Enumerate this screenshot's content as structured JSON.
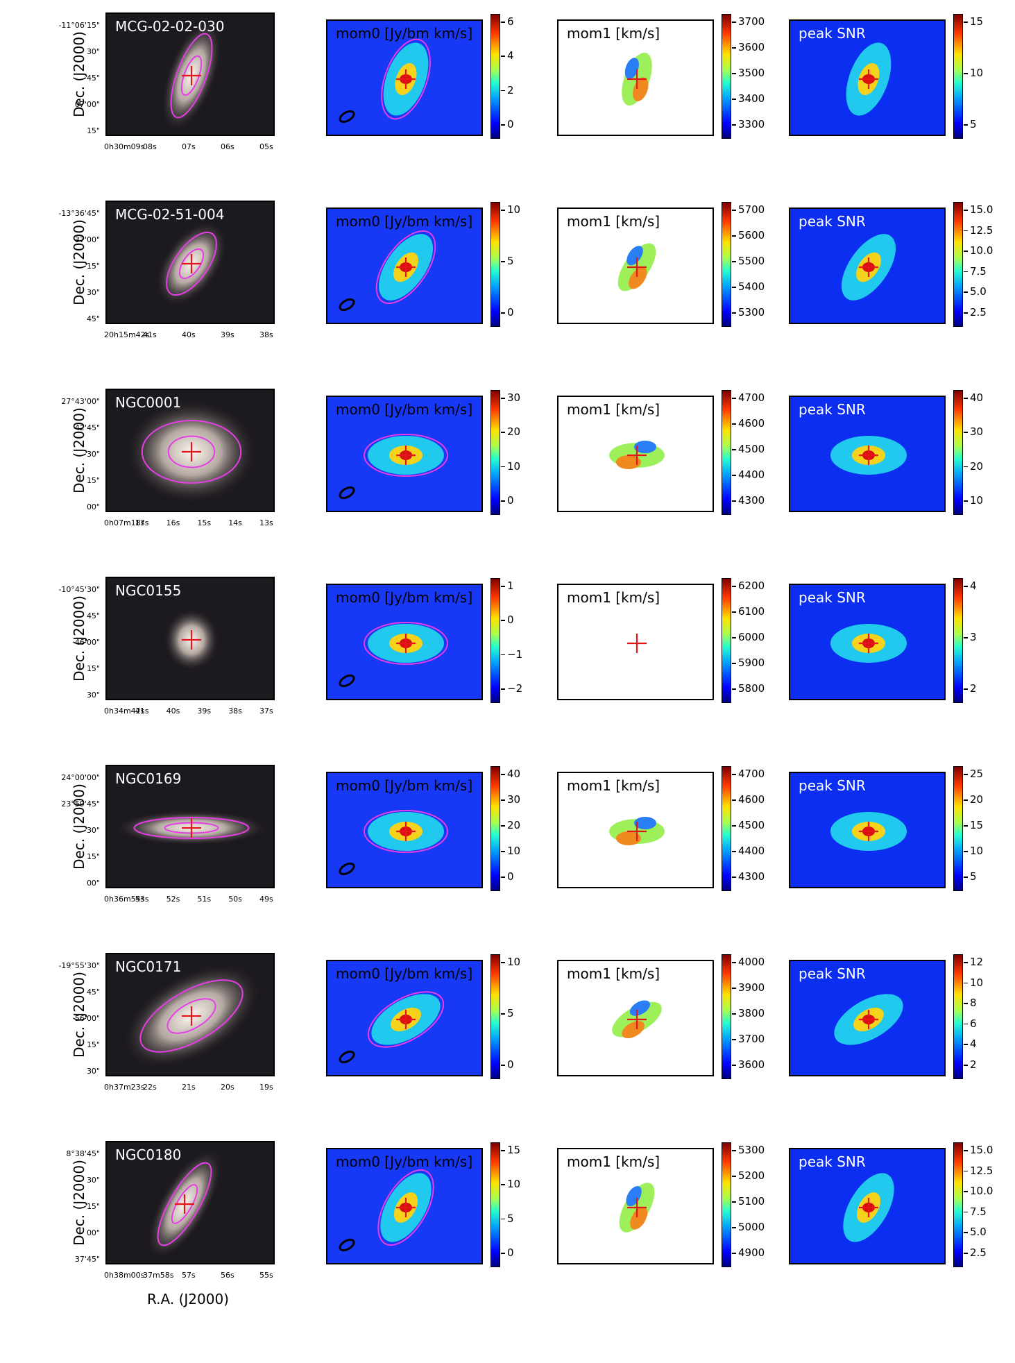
{
  "labels": {
    "mom0": "mom0 [Jy/bm km/s]",
    "mom1": "mom1 [km/s]",
    "snr": "peak SNR",
    "dec_axis": "Dec. (J2000)",
    "ra_axis": "R.A. (J2000)"
  },
  "rows": [
    {
      "name": "MCG-02-02-030",
      "dec_ticks": [
        "-11°06'15\"",
        "30\"",
        "45\"",
        "07'00\"",
        "15\""
      ],
      "ra_ticks": [
        "0h30m09s",
        "08s",
        "07s",
        "06s",
        "05s"
      ],
      "mom0_ticks": [
        "6",
        "4",
        "2",
        "0"
      ],
      "mom1_ticks": [
        "3700",
        "3600",
        "3500",
        "3400",
        "3300"
      ],
      "snr_ticks": [
        "15",
        "10",
        "5"
      ]
    },
    {
      "name": "MCG-02-51-004",
      "dec_ticks": [
        "-13°36'45\"",
        "37'00\"",
        "15\"",
        "30\"",
        "45\""
      ],
      "ra_ticks": [
        "20h15m42s",
        "41s",
        "40s",
        "39s",
        "38s"
      ],
      "mom0_ticks": [
        "10",
        "5",
        "0"
      ],
      "mom1_ticks": [
        "5700",
        "5600",
        "5500",
        "5400",
        "5300"
      ],
      "snr_ticks": [
        "15.0",
        "12.5",
        "10.0",
        "7.5",
        "5.0",
        "2.5"
      ]
    },
    {
      "name": "NGC0001",
      "dec_ticks": [
        "27°43'00\"",
        "42'45\"",
        "30\"",
        "15\"",
        "00\""
      ],
      "ra_ticks": [
        "0h07m18s",
        "17s",
        "16s",
        "15s",
        "14s",
        "13s"
      ],
      "mom0_ticks": [
        "30",
        "20",
        "10",
        "0"
      ],
      "mom1_ticks": [
        "4700",
        "4600",
        "4500",
        "4400",
        "4300"
      ],
      "snr_ticks": [
        "40",
        "30",
        "20",
        "10"
      ]
    },
    {
      "name": "NGC0155",
      "dec_ticks": [
        "-10°45'30\"",
        "45\"",
        "46'00\"",
        "15\"",
        "30\""
      ],
      "ra_ticks": [
        "0h34m42s",
        "41s",
        "40s",
        "39s",
        "38s",
        "37s"
      ],
      "mom0_ticks": [
        "1",
        "0",
        "−1",
        "−2"
      ],
      "mom1_ticks": [
        "6200",
        "6100",
        "6000",
        "5900",
        "5800"
      ],
      "snr_ticks": [
        "4",
        "3",
        "2"
      ]
    },
    {
      "name": "NGC0169",
      "dec_ticks": [
        "24°00'00\"",
        "23°59'45\"",
        "30\"",
        "15\"",
        "00\""
      ],
      "ra_ticks": [
        "0h36m54s",
        "53s",
        "52s",
        "51s",
        "50s",
        "49s"
      ],
      "mom0_ticks": [
        "40",
        "30",
        "20",
        "10",
        "0"
      ],
      "mom1_ticks": [
        "4700",
        "4600",
        "4500",
        "4400",
        "4300"
      ],
      "snr_ticks": [
        "25",
        "20",
        "15",
        "10",
        "5"
      ]
    },
    {
      "name": "NGC0171",
      "dec_ticks": [
        "-19°55'30\"",
        "45\"",
        "56'00\"",
        "15\"",
        "30\""
      ],
      "ra_ticks": [
        "0h37m23s",
        "22s",
        "21s",
        "20s",
        "19s"
      ],
      "mom0_ticks": [
        "10",
        "5",
        "0"
      ],
      "mom1_ticks": [
        "4000",
        "3900",
        "3800",
        "3700",
        "3600"
      ],
      "snr_ticks": [
        "12",
        "10",
        "8",
        "6",
        "4",
        "2"
      ]
    },
    {
      "name": "NGC0180",
      "dec_ticks": [
        "8°38'45\"",
        "30\"",
        "15\"",
        "00\"",
        "37'45\""
      ],
      "ra_ticks": [
        "0h38m00s",
        "37m58s",
        "57s",
        "56s",
        "55s"
      ],
      "mom0_ticks": [
        "15",
        "10",
        "5",
        "0"
      ],
      "mom1_ticks": [
        "5300",
        "5200",
        "5100",
        "5000",
        "4900"
      ],
      "snr_ticks": [
        "15.0",
        "12.5",
        "10.0",
        "7.5",
        "5.0",
        "2.5"
      ]
    }
  ]
}
